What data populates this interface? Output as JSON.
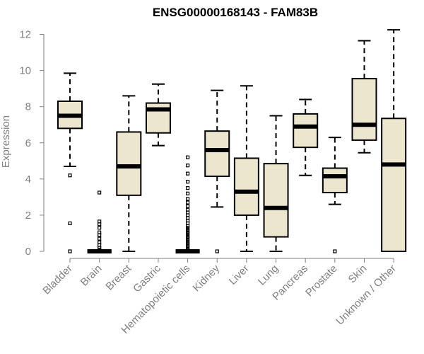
{
  "chart_data": {
    "type": "boxplot",
    "title": "ENSG00000168143 - FAM83B",
    "xlabel": "",
    "ylabel": "Expression",
    "ylim": [
      0,
      12.2
    ],
    "yticks": [
      0,
      2,
      4,
      6,
      8,
      10,
      12
    ],
    "grid": false,
    "box_color": "#ede6cf",
    "axis_color": "#7f7f7f",
    "categories": [
      "Bladder",
      "Brain",
      "Breast",
      "Gastric",
      "Hematopoietic cells",
      "Kidney",
      "Liver",
      "Lung",
      "Pancreas",
      "Prostate",
      "Skin",
      "Unknown / Other"
    ],
    "boxes": [
      {
        "name": "Bladder",
        "whisker_low": 4.7,
        "q1": 6.8,
        "median": 7.5,
        "q3": 8.3,
        "whisker_high": 9.85,
        "outliers": [
          4.2,
          1.55,
          0.0
        ]
      },
      {
        "name": "Brain",
        "whisker_low": 0.0,
        "q1": 0.0,
        "median": 0.0,
        "q3": 0.0,
        "whisker_high": 0.0,
        "outliers": [
          3.25,
          1.65,
          1.5,
          1.3,
          1.05,
          0.9,
          0.7,
          0.5,
          0.35,
          0.2,
          0.1,
          0.0,
          0.0,
          0.0,
          0.0,
          0.0,
          0.0,
          0.0,
          0.0,
          0.0,
          0.0,
          0.0,
          0.0,
          0.0,
          0.0,
          0.0,
          0.0
        ]
      },
      {
        "name": "Breast",
        "whisker_low": 0.0,
        "q1": 3.1,
        "median": 4.7,
        "q3": 6.6,
        "whisker_high": 8.6,
        "outliers": []
      },
      {
        "name": "Gastric",
        "whisker_low": 5.85,
        "q1": 6.55,
        "median": 7.85,
        "q3": 8.2,
        "whisker_high": 9.25,
        "outliers": []
      },
      {
        "name": "Hematopoietic cells",
        "whisker_low": 0.0,
        "q1": 0.0,
        "median": 0.0,
        "q3": 0.0,
        "whisker_high": 0.0,
        "outliers": [
          5.2,
          4.75,
          4.3,
          3.85,
          3.5,
          3.2,
          2.9,
          2.7,
          2.5,
          2.3,
          2.15,
          2.0,
          1.85,
          1.7,
          1.55,
          1.4,
          1.3,
          1.2,
          1.1,
          1.0,
          0.9,
          0.8,
          0.7,
          0.6,
          0.5,
          0.4,
          0.3,
          0.2,
          0.1,
          0.0,
          0.0,
          0.0,
          0.0,
          0.0,
          0.0,
          0.0,
          0.0,
          0.0,
          0.0,
          0.0,
          0.0,
          0.0,
          0.0,
          0.0
        ]
      },
      {
        "name": "Kidney",
        "whisker_low": 2.45,
        "q1": 4.15,
        "median": 5.6,
        "q3": 6.65,
        "whisker_high": 8.9,
        "outliers": [
          0.0
        ]
      },
      {
        "name": "Liver",
        "whisker_low": 0.0,
        "q1": 2.0,
        "median": 3.3,
        "q3": 5.15,
        "whisker_high": 9.15,
        "outliers": []
      },
      {
        "name": "Lung",
        "whisker_low": 0.0,
        "q1": 0.8,
        "median": 2.4,
        "q3": 4.85,
        "whisker_high": 7.5,
        "outliers": []
      },
      {
        "name": "Pancreas",
        "whisker_low": 4.2,
        "q1": 5.75,
        "median": 6.9,
        "q3": 7.6,
        "whisker_high": 8.4,
        "outliers": []
      },
      {
        "name": "Prostate",
        "whisker_low": 2.6,
        "q1": 3.25,
        "median": 4.15,
        "q3": 4.6,
        "whisker_high": 6.3,
        "outliers": [
          0.0
        ]
      },
      {
        "name": "Skin",
        "whisker_low": 5.45,
        "q1": 6.15,
        "median": 7.0,
        "q3": 9.55,
        "whisker_high": 11.65,
        "outliers": []
      },
      {
        "name": "Unknown / Other",
        "whisker_low": 0.0,
        "q1": 0.0,
        "median": 4.8,
        "q3": 7.35,
        "whisker_high": 12.25,
        "outliers": []
      }
    ]
  }
}
